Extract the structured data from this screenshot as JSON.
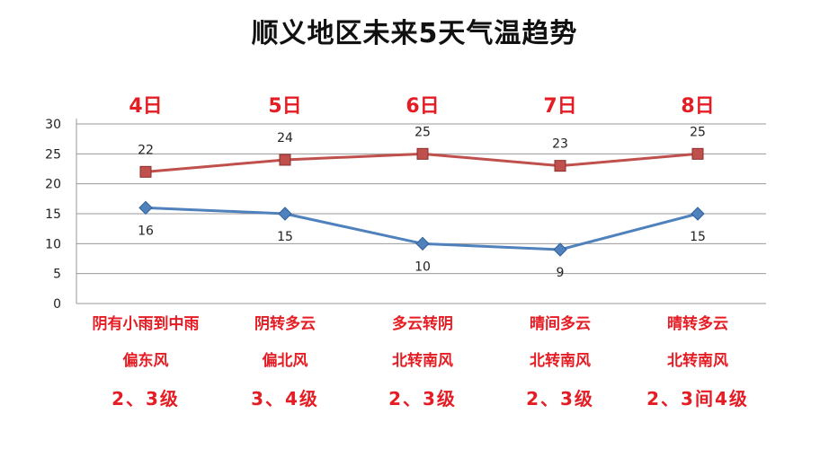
{
  "chart_data": {
    "type": "line",
    "title": "顺义地区未来5天气温趋势",
    "categories": [
      "4日",
      "5日",
      "6日",
      "7日",
      "8日"
    ],
    "conditions": [
      {
        "weather": "阴有小雨到中雨",
        "wind": "偏东风",
        "level": "2、3级"
      },
      {
        "weather": "阴转多云",
        "wind": "偏北风",
        "level": "3、4级"
      },
      {
        "weather": "多云转阴",
        "wind": "北转南风",
        "level": "2、3级"
      },
      {
        "weather": "晴间多云",
        "wind": "北转南风",
        "level": "2、3级"
      },
      {
        "weather": "晴转多云",
        "wind": "北转南风",
        "level": "2、3间4级"
      }
    ],
    "series": [
      {
        "values": [
          22,
          24,
          25,
          23,
          25
        ],
        "color": "#c0504d",
        "marker": "square",
        "labels": [
          "22",
          "24",
          "25",
          "23",
          "25"
        ],
        "label_position": "above"
      },
      {
        "values": [
          16,
          15,
          10,
          9,
          15
        ],
        "color": "#4f81bd",
        "marker": "diamond",
        "labels": [
          "16",
          "15",
          "10",
          "9",
          "15"
        ],
        "label_position": "below"
      }
    ],
    "ylim": [
      0,
      30
    ],
    "yticks": [
      "0",
      "5",
      "10",
      "15",
      "20",
      "25",
      "30"
    ],
    "grid": true,
    "legend": "none",
    "xlabel": "",
    "ylabel": ""
  }
}
